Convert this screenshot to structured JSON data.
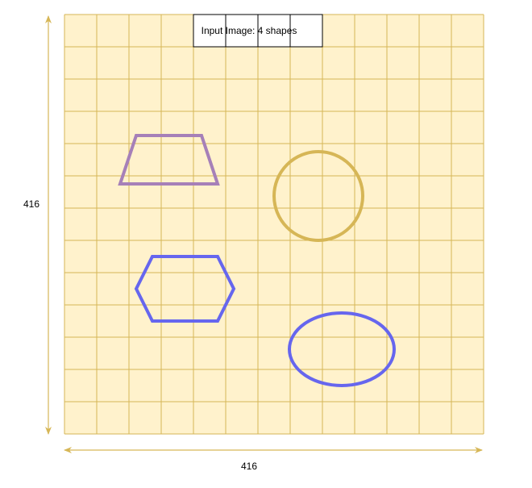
{
  "title": "Input Image: 4 shapes",
  "dimensions": {
    "height_label": "416",
    "width_label": "416"
  },
  "colors": {
    "canvas_fill": "#fff2cc",
    "grid_line": "#d6b656",
    "arrow": "#d6b656",
    "trapezoid_stroke": "#a680b8",
    "circle_stroke": "#d6b656",
    "hexagon_stroke": "#6666ee",
    "ellipse_stroke": "#6666ee"
  },
  "shapes": [
    {
      "kind": "trapezoid",
      "color_key": "trapezoid_stroke"
    },
    {
      "kind": "circle",
      "color_key": "circle_stroke"
    },
    {
      "kind": "hexagon",
      "color_key": "hexagon_stroke"
    },
    {
      "kind": "ellipse",
      "color_key": "ellipse_stroke"
    }
  ]
}
